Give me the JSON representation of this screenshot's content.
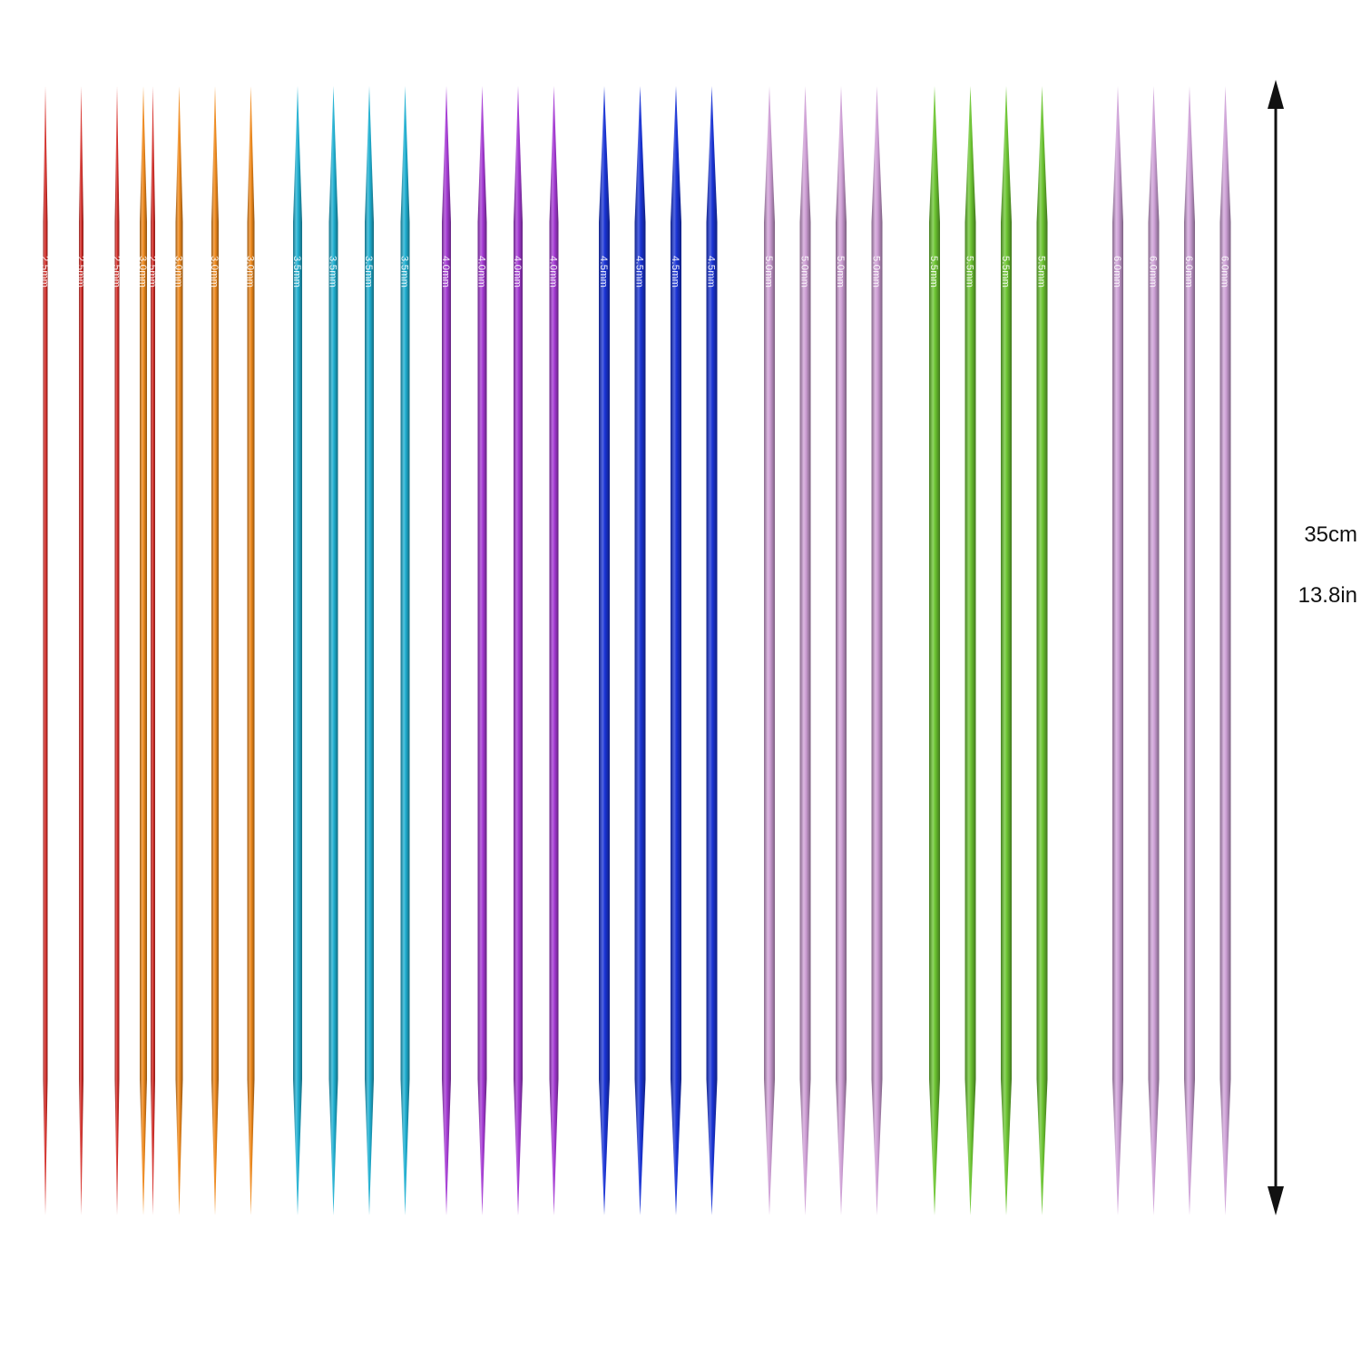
{
  "needle_sets": [
    {
      "label": "2.5mm",
      "color": "#d8302b",
      "count": 4
    },
    {
      "label": "3.0mm",
      "color": "#f08a1c",
      "count": 4
    },
    {
      "label": "3.5mm",
      "color": "#1fb0d2",
      "count": 4
    },
    {
      "label": "4.0mm",
      "color": "#a53ad4",
      "count": 4
    },
    {
      "label": "4.5mm",
      "color": "#1a34d6",
      "count": 4
    },
    {
      "label": "5.0mm",
      "color": "#cf9fd6",
      "count": 4
    },
    {
      "label": "5.5mm",
      "color": "#6cc531",
      "count": 4
    },
    {
      "label": "6.0mm",
      "color": "#cfa2d8",
      "count": 4
    }
  ],
  "dimension": {
    "length_cm": "35cm",
    "length_in": "13.8in"
  }
}
